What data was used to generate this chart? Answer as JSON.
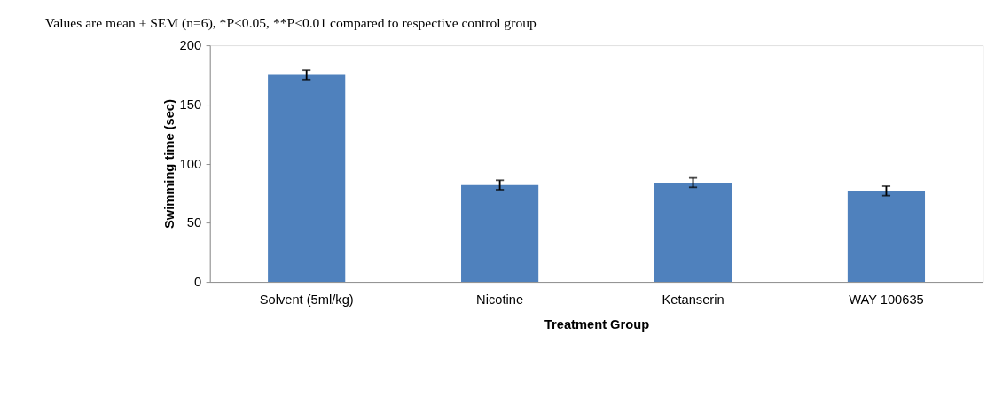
{
  "chart_data": {
    "type": "bar",
    "categories": [
      "Solvent (5ml/kg)",
      "Nicotine",
      "Ketanserin",
      "WAY 100635"
    ],
    "values": [
      175,
      82,
      84,
      77
    ],
    "errors": [
      4,
      4,
      4,
      4
    ],
    "color": "#4f81bd",
    "xlabel": "Treatment Group",
    "ylabel": "Swimming time (sec)",
    "ylim": [
      0,
      200
    ],
    "yticks": [
      0,
      50,
      100,
      150,
      200
    ],
    "grid": false,
    "annotations": [
      "Values are mean ± SEM (n=6), *P<0.05, **P<0.01 compared to respective control group"
    ]
  }
}
